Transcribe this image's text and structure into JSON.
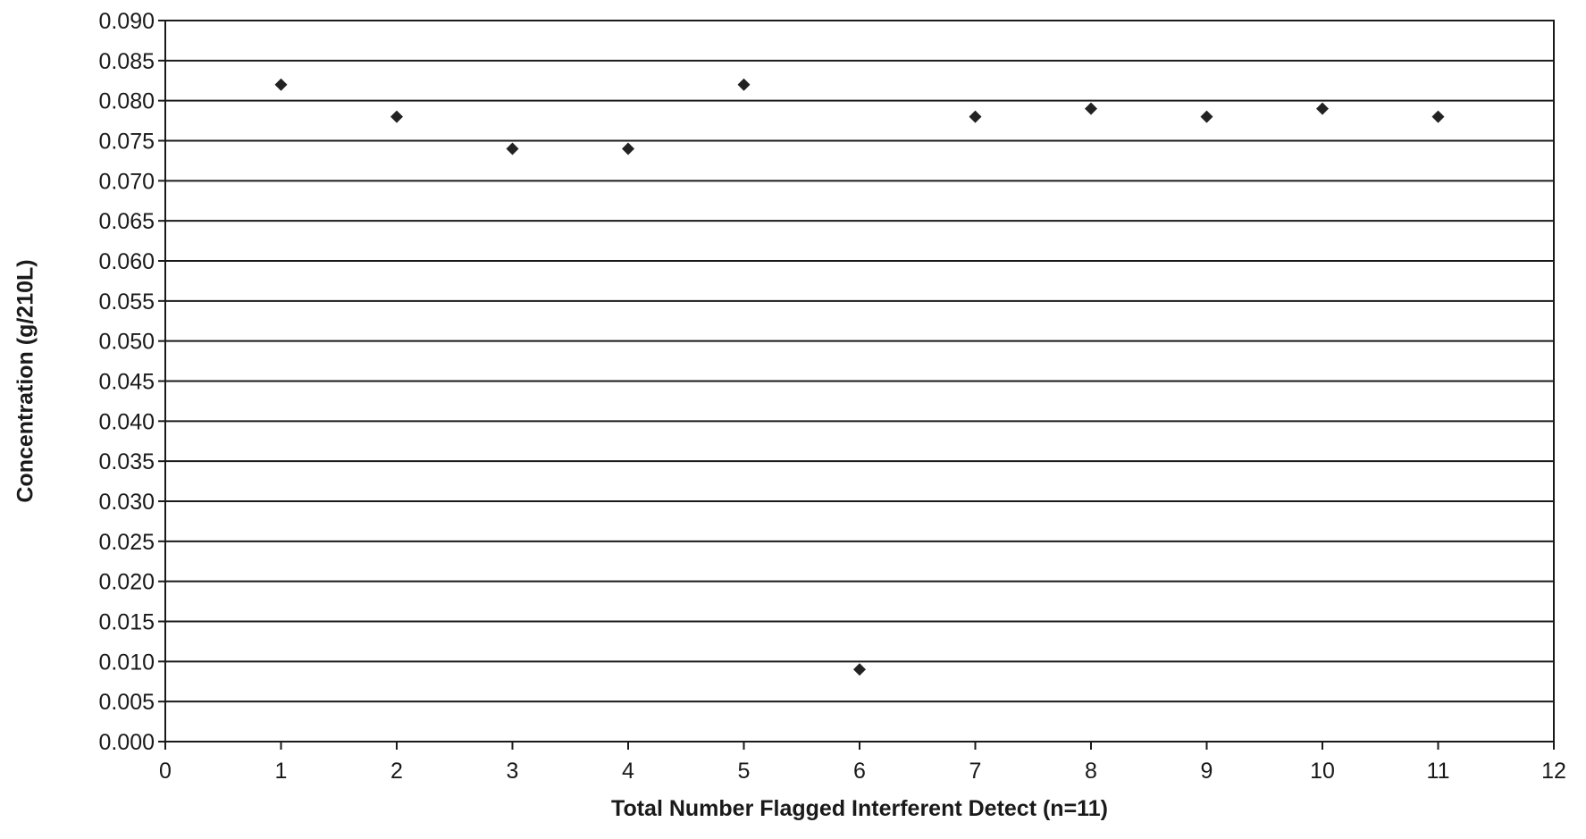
{
  "chart_data": {
    "type": "scatter",
    "title": "",
    "xlabel": "Total Number Flagged Interferent Detect (n=11)",
    "ylabel": "Concentration (g/210L)",
    "xlim": [
      0,
      12
    ],
    "ylim": [
      0.0,
      0.09
    ],
    "x_ticks": [
      "0",
      "1",
      "2",
      "3",
      "4",
      "5",
      "6",
      "7",
      "8",
      "9",
      "10",
      "11",
      "12"
    ],
    "y_ticks": [
      "0.000",
      "0.005",
      "0.010",
      "0.015",
      "0.020",
      "0.025",
      "0.030",
      "0.035",
      "0.040",
      "0.045",
      "0.050",
      "0.055",
      "0.060",
      "0.065",
      "0.070",
      "0.075",
      "0.080",
      "0.085",
      "0.090"
    ],
    "grid": "horizontal",
    "legend": "none",
    "marker": "diamond",
    "marker_color": "#222222",
    "series": [
      {
        "x": [
          1,
          2,
          3,
          4,
          5,
          6,
          7,
          8,
          9,
          10,
          11
        ],
        "y": [
          0.082,
          0.078,
          0.074,
          0.074,
          0.082,
          0.009,
          0.078,
          0.079,
          0.078,
          0.079,
          0.078
        ]
      }
    ]
  }
}
